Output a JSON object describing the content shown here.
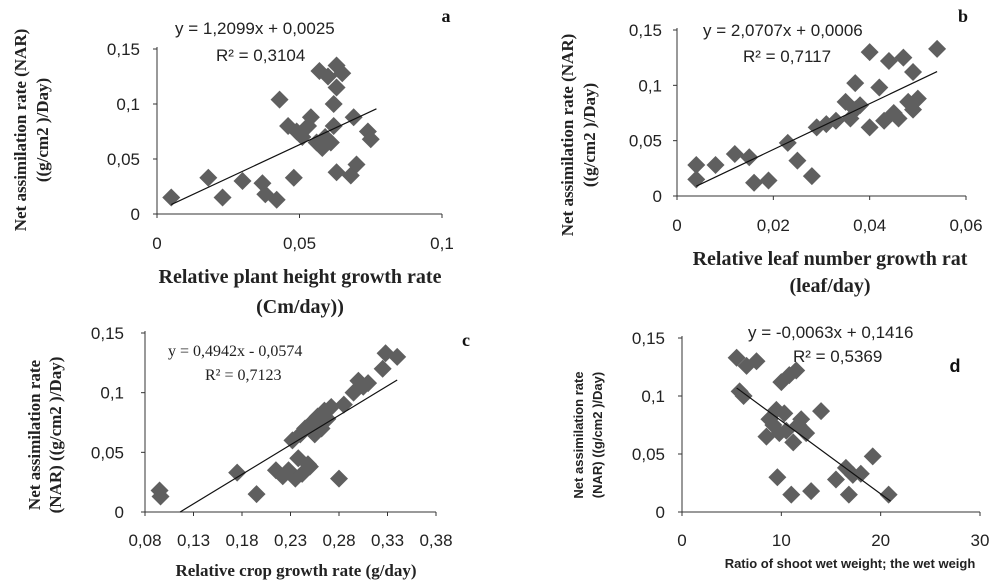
{
  "chart_data": [
    {
      "type": "scatter",
      "panel": "a",
      "equation": "y = 1,2099x + 0,0025",
      "r2": "R² = 0,3104",
      "ylabel_lines": [
        "Net assimilation rate (NAR)",
        "((g/cm2 )/Day)"
      ],
      "xlabel_lines": [
        "Relative plant height growth rate",
        "(Cm/day))"
      ],
      "xlim": [
        0,
        0.1
      ],
      "ylim": [
        0,
        0.15
      ],
      "xticks": [
        {
          "v": 0,
          "label": "0"
        },
        {
          "v": 0.05,
          "label": "0,05"
        },
        {
          "v": 0.1,
          "label": "0,1"
        }
      ],
      "yticks": [
        {
          "v": 0,
          "label": "0"
        },
        {
          "v": 0.05,
          "label": "0,05"
        },
        {
          "v": 0.1,
          "label": "0,1"
        },
        {
          "v": 0.15,
          "label": "0,15"
        }
      ],
      "trend": {
        "slope": 1.2099,
        "intercept": 0.0025,
        "x_range": [
          0.005,
          0.077
        ]
      },
      "points": [
        [
          0.005,
          0.015
        ],
        [
          0.018,
          0.033
        ],
        [
          0.023,
          0.015
        ],
        [
          0.03,
          0.03
        ],
        [
          0.037,
          0.028
        ],
        [
          0.038,
          0.018
        ],
        [
          0.042,
          0.013
        ],
        [
          0.043,
          0.104
        ],
        [
          0.046,
          0.08
        ],
        [
          0.048,
          0.033
        ],
        [
          0.049,
          0.075
        ],
        [
          0.051,
          0.07
        ],
        [
          0.053,
          0.08
        ],
        [
          0.054,
          0.088
        ],
        [
          0.056,
          0.065
        ],
        [
          0.057,
          0.13
        ],
        [
          0.058,
          0.06
        ],
        [
          0.059,
          0.07
        ],
        [
          0.06,
          0.125
        ],
        [
          0.061,
          0.065
        ],
        [
          0.062,
          0.1
        ],
        [
          0.062,
          0.08
        ],
        [
          0.063,
          0.135
        ],
        [
          0.063,
          0.115
        ],
        [
          0.063,
          0.038
        ],
        [
          0.065,
          0.128
        ],
        [
          0.068,
          0.035
        ],
        [
          0.069,
          0.088
        ],
        [
          0.07,
          0.045
        ],
        [
          0.074,
          0.075
        ],
        [
          0.075,
          0.068
        ]
      ]
    },
    {
      "type": "scatter",
      "panel": "b",
      "equation": "y = 2,0707x + 0,0006",
      "r2": "R² = 0,7117",
      "ylabel_lines": [
        "Net assimilation rate (NAR)",
        "((g/cm2 )/Day)"
      ],
      "xlabel_lines": [
        "Relative leaf number growth rat",
        "(leaf/day)"
      ],
      "xlim": [
        0,
        0.06
      ],
      "ylim": [
        0,
        0.15
      ],
      "xticks": [
        {
          "v": 0,
          "label": "0"
        },
        {
          "v": 0.02,
          "label": "0,02"
        },
        {
          "v": 0.04,
          "label": "0,04"
        },
        {
          "v": 0.06,
          "label": "0,06"
        }
      ],
      "yticks": [
        {
          "v": 0,
          "label": "0"
        },
        {
          "v": 0.05,
          "label": "0,05"
        },
        {
          "v": 0.1,
          "label": "0,1"
        },
        {
          "v": 0.15,
          "label": "0,15"
        }
      ],
      "trend": {
        "slope": 2.0707,
        "intercept": 0.0006,
        "x_range": [
          0.004,
          0.054
        ]
      },
      "points": [
        [
          0.004,
          0.028
        ],
        [
          0.004,
          0.015
        ],
        [
          0.008,
          0.028
        ],
        [
          0.012,
          0.038
        ],
        [
          0.015,
          0.035
        ],
        [
          0.016,
          0.012
        ],
        [
          0.019,
          0.014
        ],
        [
          0.023,
          0.048
        ],
        [
          0.025,
          0.032
        ],
        [
          0.028,
          0.018
        ],
        [
          0.029,
          0.062
        ],
        [
          0.031,
          0.065
        ],
        [
          0.033,
          0.068
        ],
        [
          0.035,
          0.085
        ],
        [
          0.036,
          0.07
        ],
        [
          0.037,
          0.078
        ],
        [
          0.037,
          0.102
        ],
        [
          0.038,
          0.082
        ],
        [
          0.04,
          0.062
        ],
        [
          0.04,
          0.13
        ],
        [
          0.042,
          0.098
        ],
        [
          0.043,
          0.068
        ],
        [
          0.044,
          0.122
        ],
        [
          0.045,
          0.075
        ],
        [
          0.046,
          0.07
        ],
        [
          0.047,
          0.125
        ],
        [
          0.048,
          0.085
        ],
        [
          0.049,
          0.112
        ],
        [
          0.049,
          0.078
        ],
        [
          0.05,
          0.088
        ],
        [
          0.054,
          0.133
        ]
      ]
    },
    {
      "type": "scatter",
      "panel": "c",
      "equation": "y = 0,4942x - 0,0574",
      "r2": "R² = 0,7123",
      "ylabel_lines": [
        "Net assimilation rate",
        "(NAR) ((g/cm2 )/Day)"
      ],
      "xlabel_lines": [
        "Relative crop growth rate (g/day)"
      ],
      "xlim": [
        0.08,
        0.38
      ],
      "ylim": [
        0,
        0.15
      ],
      "xticks": [
        {
          "v": 0.08,
          "label": "0,08"
        },
        {
          "v": 0.13,
          "label": "0,13"
        },
        {
          "v": 0.18,
          "label": "0,18"
        },
        {
          "v": 0.23,
          "label": "0,23"
        },
        {
          "v": 0.28,
          "label": "0,28"
        },
        {
          "v": 0.33,
          "label": "0,33"
        },
        {
          "v": 0.38,
          "label": "0,38"
        }
      ],
      "yticks": [
        {
          "v": 0,
          "label": "0"
        },
        {
          "v": 0.05,
          "label": "0,05"
        },
        {
          "v": 0.1,
          "label": "0,1"
        },
        {
          "v": 0.15,
          "label": "0,15"
        }
      ],
      "trend": {
        "slope": 0.4942,
        "intercept": -0.0574,
        "x_range": [
          0.116,
          0.34
        ]
      },
      "points": [
        [
          0.095,
          0.018
        ],
        [
          0.096,
          0.013
        ],
        [
          0.175,
          0.033
        ],
        [
          0.195,
          0.015
        ],
        [
          0.215,
          0.035
        ],
        [
          0.222,
          0.03
        ],
        [
          0.228,
          0.035
        ],
        [
          0.232,
          0.06
        ],
        [
          0.235,
          0.028
        ],
        [
          0.238,
          0.045
        ],
        [
          0.24,
          0.065
        ],
        [
          0.242,
          0.032
        ],
        [
          0.245,
          0.07
        ],
        [
          0.248,
          0.04
        ],
        [
          0.25,
          0.038
        ],
        [
          0.252,
          0.075
        ],
        [
          0.255,
          0.065
        ],
        [
          0.258,
          0.08
        ],
        [
          0.262,
          0.07
        ],
        [
          0.265,
          0.085
        ],
        [
          0.268,
          0.078
        ],
        [
          0.272,
          0.088
        ],
        [
          0.28,
          0.028
        ],
        [
          0.285,
          0.09
        ],
        [
          0.295,
          0.1
        ],
        [
          0.3,
          0.11
        ],
        [
          0.305,
          0.105
        ],
        [
          0.31,
          0.108
        ],
        [
          0.325,
          0.12
        ],
        [
          0.328,
          0.133
        ],
        [
          0.34,
          0.13
        ]
      ]
    },
    {
      "type": "scatter",
      "panel": "d",
      "equation": "y = -0,0063x + 0,1416",
      "r2": "R² = 0,5369",
      "ylabel_lines": [
        "Net assimilation rate",
        "(NAR) ((g/cm2 )/Day)"
      ],
      "xlabel_lines": [
        "Ratio of shoot wet weight; the wet weigh"
      ],
      "xlim": [
        0,
        30
      ],
      "ylim": [
        0,
        0.15
      ],
      "xticks": [
        {
          "v": 0,
          "label": "0"
        },
        {
          "v": 10,
          "label": "10"
        },
        {
          "v": 20,
          "label": "20"
        },
        {
          "v": 30,
          "label": "30"
        }
      ],
      "yticks": [
        {
          "v": 0,
          "label": "0"
        },
        {
          "v": 0.05,
          "label": "0,05"
        },
        {
          "v": 0.1,
          "label": "0,1"
        },
        {
          "v": 0.15,
          "label": "0,15"
        }
      ],
      "trend": {
        "slope": -0.0063,
        "intercept": 0.1416,
        "x_range": [
          5.5,
          21
        ]
      },
      "points": [
        [
          5.5,
          0.133
        ],
        [
          5.8,
          0.104
        ],
        [
          6.2,
          0.1
        ],
        [
          6.5,
          0.126
        ],
        [
          7.5,
          0.13
        ],
        [
          8.5,
          0.065
        ],
        [
          8.8,
          0.08
        ],
        [
          9.2,
          0.075
        ],
        [
          9.5,
          0.088
        ],
        [
          9.6,
          0.03
        ],
        [
          9.8,
          0.068
        ],
        [
          10.0,
          0.112
        ],
        [
          10.3,
          0.085
        ],
        [
          10.5,
          0.07
        ],
        [
          10.8,
          0.118
        ],
        [
          11.0,
          0.015
        ],
        [
          11.2,
          0.06
        ],
        [
          11.5,
          0.122
        ],
        [
          11.7,
          0.075
        ],
        [
          12.0,
          0.08
        ],
        [
          12.5,
          0.068
        ],
        [
          13.0,
          0.018
        ],
        [
          14.0,
          0.087
        ],
        [
          15.5,
          0.028
        ],
        [
          16.5,
          0.038
        ],
        [
          16.8,
          0.015
        ],
        [
          17.2,
          0.032
        ],
        [
          18.0,
          0.033
        ],
        [
          19.2,
          0.048
        ],
        [
          20.8,
          0.015
        ]
      ]
    }
  ]
}
